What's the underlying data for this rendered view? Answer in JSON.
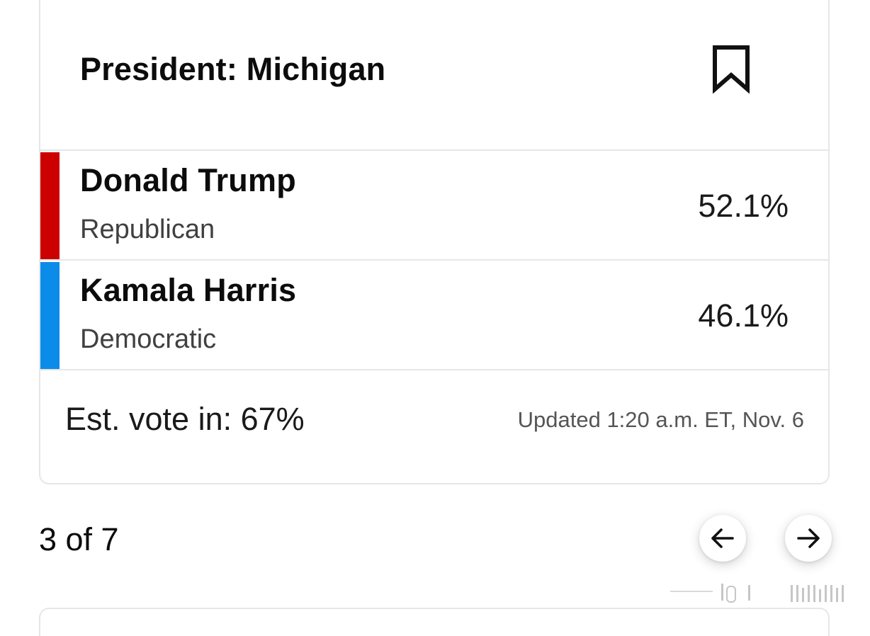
{
  "race": {
    "title": "President: Michigan"
  },
  "candidates": [
    {
      "name": "Donald Trump",
      "party": "Republican",
      "percent": "52.1%",
      "color": "#cc0000"
    },
    {
      "name": "Kamala Harris",
      "party": "Democratic",
      "percent": "46.1%",
      "color": "#0c8ce9"
    }
  ],
  "footer": {
    "est_vote": "Est. vote in: 67%",
    "updated": "Updated 1:20 a.m. ET, Nov. 6"
  },
  "pager": {
    "label": "3 of 7"
  },
  "icons": {
    "bookmark": "bookmark-icon",
    "prev": "arrow-left-icon",
    "next": "arrow-right-icon"
  }
}
